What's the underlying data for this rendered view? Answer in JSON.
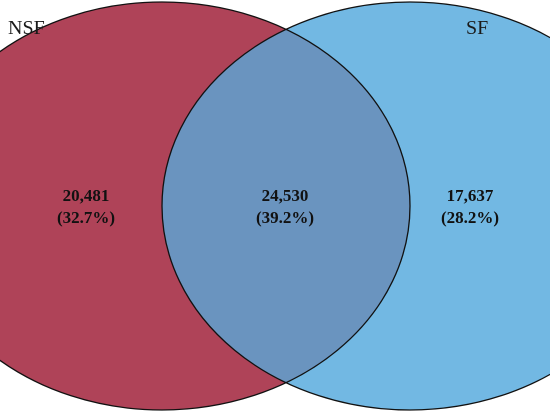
{
  "venn": {
    "sets": [
      {
        "name": "NSF",
        "color": "#a8334a"
      },
      {
        "name": "SF",
        "color": "#6ab4e2"
      }
    ],
    "overlap_color": "#6a94bf",
    "regions": {
      "left_only": {
        "count": "20,481",
        "percent": "(32.7%)"
      },
      "both": {
        "count": "24,530",
        "percent": "(39.2%)"
      },
      "right_only": {
        "count": "17,637",
        "percent": "(28.2%)"
      }
    }
  }
}
